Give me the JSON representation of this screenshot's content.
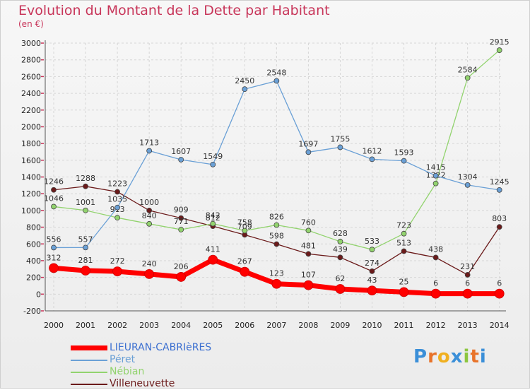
{
  "title": "Evolution du Montant de la Dette par Habitant",
  "unit_label": "(en €)",
  "logo": {
    "chars": [
      "P",
      "r",
      "o",
      "x",
      "i",
      "t",
      "i"
    ],
    "colors": [
      "#3b8fd8",
      "#e8732a",
      "#f0b020",
      "#3b8fd8",
      "#8cc63f",
      "#e8732a",
      "#3b8fd8"
    ]
  },
  "chart_data": {
    "type": "line",
    "categories": [
      "2000",
      "2001",
      "2002",
      "2003",
      "2004",
      "2005",
      "2006",
      "2007",
      "2008",
      "2009",
      "2010",
      "2011",
      "2012",
      "2013",
      "2014"
    ],
    "ylim": [
      -200,
      3000
    ],
    "yticks": [
      -200,
      0,
      200,
      400,
      600,
      800,
      1000,
      1200,
      1400,
      1600,
      1800,
      2000,
      2200,
      2400,
      2600,
      2800,
      3000
    ],
    "grid": true,
    "legend": "bottom-left",
    "series": [
      {
        "name": "Villeneuvette",
        "color": "#6b1a1a",
        "width": 1.3,
        "values": [
          1246,
          1288,
          1223,
          1000,
          909,
          812,
          709,
          598,
          481,
          439,
          274,
          513,
          438,
          231,
          803
        ]
      },
      {
        "name": "Nébian",
        "color": "#92d36e",
        "width": 1.3,
        "values": [
          1046,
          1001,
          913,
          840,
          771,
          842,
          758,
          826,
          760,
          628,
          533,
          723,
          1322,
          2584,
          2915
        ]
      },
      {
        "name": "Péret",
        "color": "#6aa0d6",
        "width": 1.3,
        "values": [
          556,
          557,
          1035,
          1713,
          1607,
          1549,
          2450,
          2548,
          1697,
          1755,
          1612,
          1593,
          1415,
          1304,
          1245
        ]
      },
      {
        "name": "LIEURAN-CABRIèRES",
        "color": "#ff0000",
        "width": 7,
        "values": [
          312,
          281,
          272,
          240,
          206,
          411,
          267,
          123,
          107,
          62,
          43,
          25,
          6,
          6,
          6
        ]
      }
    ],
    "legend_order": [
      "LIEURAN-CABRIèRES",
      "Péret",
      "Nébian",
      "Villeneuvette"
    ]
  }
}
